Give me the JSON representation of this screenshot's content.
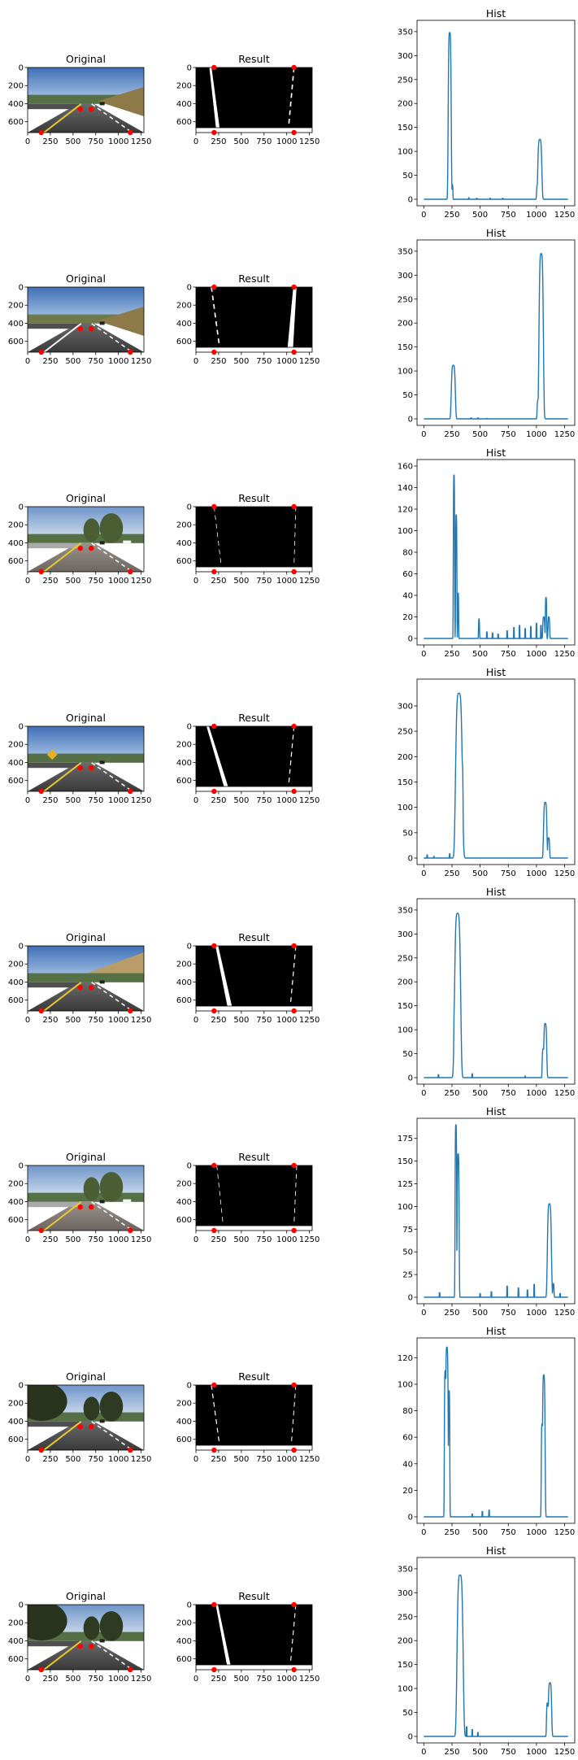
{
  "figure": {
    "rows": [
      {
        "original_title": "Original",
        "result_title": "Result",
        "hist_title": "Hist",
        "scene": "freeway-yellow",
        "hist": {
          "ylim": [
            0,
            360
          ],
          "yticks": [
            0,
            50,
            100,
            150,
            200,
            250,
            300,
            350
          ],
          "peaks": [
            {
              "c": 230,
              "w": 9,
              "h": 348
            },
            {
              "c": 214,
              "w": 3,
              "h": 30
            },
            {
              "c": 254,
              "w": 3,
              "h": 30
            },
            {
              "c": 1030,
              "w": 12,
              "h": 125
            },
            {
              "c": 1010,
              "w": 6,
              "h": 30
            }
          ],
          "noise": [
            {
              "x": 400,
              "h": 3
            },
            {
              "x": 470,
              "h": 2
            },
            {
              "x": 590,
              "h": 2
            },
            {
              "x": 700,
              "h": 2
            }
          ]
        },
        "result_lanes": [
          {
            "x0": 160,
            "x1": 240,
            "w": 40,
            "dash": false
          },
          {
            "x0": 1080,
            "x1": 1020,
            "w": 30,
            "dash": true
          }
        ]
      },
      {
        "original_title": "Original",
        "result_title": "Result",
        "hist_title": "Hist",
        "scene": "freeway-white",
        "hist": {
          "ylim": [
            0,
            360
          ],
          "yticks": [
            0,
            50,
            100,
            150,
            200,
            250,
            300,
            350
          ],
          "peaks": [
            {
              "c": 262,
              "w": 12,
              "h": 112
            },
            {
              "c": 1042,
              "w": 13,
              "h": 345
            },
            {
              "c": 1015,
              "w": 6,
              "h": 40
            }
          ],
          "noise": [
            {
              "x": 420,
              "h": 2
            },
            {
              "x": 480,
              "h": 2
            },
            {
              "x": 560,
              "h": 1
            }
          ]
        },
        "result_lanes": [
          {
            "x0": 170,
            "x1": 260,
            "w": 30,
            "dash": true
          },
          {
            "x0": 1090,
            "x1": 1040,
            "w": 60,
            "dash": false
          }
        ]
      },
      {
        "original_title": "Original",
        "result_title": "Result",
        "hist_title": "Hist",
        "scene": "trees-bright",
        "hist": {
          "ylim": [
            0,
            160
          ],
          "yticks": [
            0,
            20,
            40,
            60,
            80,
            100,
            120,
            140,
            160
          ],
          "peaks": [
            {
              "c": 268,
              "w": 4,
              "h": 152
            },
            {
              "c": 288,
              "w": 4,
              "h": 115
            },
            {
              "c": 305,
              "w": 3,
              "h": 42
            },
            {
              "c": 490,
              "w": 3,
              "h": 18
            },
            {
              "c": 1085,
              "w": 4,
              "h": 38
            },
            {
              "c": 1065,
              "w": 6,
              "h": 20
            },
            {
              "c": 1110,
              "w": 5,
              "h": 20
            }
          ],
          "noise": [
            {
              "x": 560,
              "h": 6
            },
            {
              "x": 610,
              "h": 5
            },
            {
              "x": 660,
              "h": 4
            },
            {
              "x": 740,
              "h": 7
            },
            {
              "x": 800,
              "h": 10
            },
            {
              "x": 850,
              "h": 12
            },
            {
              "x": 900,
              "h": 9
            },
            {
              "x": 950,
              "h": 11
            },
            {
              "x": 1000,
              "h": 14
            },
            {
              "x": 1040,
              "h": 12
            }
          ]
        },
        "result_lanes": [
          {
            "x0": 200,
            "x1": 280,
            "w": 14,
            "dash": true
          },
          {
            "x0": 1100,
            "x1": 1080,
            "w": 14,
            "dash": true
          }
        ]
      },
      {
        "original_title": "Original",
        "result_title": "Result",
        "hist_title": "Hist",
        "scene": "curve-sign",
        "hist": {
          "ylim": [
            0,
            340
          ],
          "yticks": [
            0,
            50,
            100,
            150,
            200,
            250,
            300
          ],
          "peaks": [
            {
              "c": 312,
              "w": 20,
              "h": 325
            },
            {
              "c": 340,
              "w": 6,
              "h": 190
            },
            {
              "c": 1078,
              "w": 10,
              "h": 110
            },
            {
              "c": 1108,
              "w": 6,
              "h": 40
            }
          ],
          "noise": [
            {
              "x": 30,
              "h": 6
            },
            {
              "x": 90,
              "h": 3
            },
            {
              "x": 230,
              "h": 8
            }
          ]
        },
        "result_lanes": [
          {
            "x0": 130,
            "x1": 330,
            "w": 45,
            "dash": false
          },
          {
            "x0": 1080,
            "x1": 1020,
            "w": 22,
            "dash": true
          }
        ]
      },
      {
        "original_title": "Original",
        "result_title": "Result",
        "hist_title": "Hist",
        "scene": "hill",
        "hist": {
          "ylim": [
            0,
            360
          ],
          "yticks": [
            0,
            50,
            100,
            150,
            200,
            250,
            300,
            350
          ],
          "peaks": [
            {
              "c": 300,
              "w": 18,
              "h": 343
            },
            {
              "c": 275,
              "w": 6,
              "h": 160
            },
            {
              "c": 1078,
              "w": 9,
              "h": 113
            },
            {
              "c": 1060,
              "w": 6,
              "h": 60
            }
          ],
          "noise": [
            {
              "x": 130,
              "h": 6
            },
            {
              "x": 430,
              "h": 8
            },
            {
              "x": 900,
              "h": 3
            }
          ]
        },
        "result_lanes": [
          {
            "x0": 230,
            "x1": 370,
            "w": 50,
            "dash": false
          },
          {
            "x0": 1100,
            "x1": 1040,
            "w": 22,
            "dash": true
          }
        ]
      },
      {
        "original_title": "Original",
        "result_title": "Result",
        "hist_title": "Hist",
        "scene": "trees-bright",
        "hist": {
          "ylim": [
            0,
            190
          ],
          "yticks": [
            0,
            25,
            50,
            75,
            100,
            125,
            150,
            175
          ],
          "peaks": [
            {
              "c": 285,
              "w": 5,
              "h": 190
            },
            {
              "c": 305,
              "w": 6,
              "h": 158
            },
            {
              "c": 1115,
              "w": 12,
              "h": 103
            },
            {
              "c": 1150,
              "w": 4,
              "h": 15
            }
          ],
          "noise": [
            {
              "x": 140,
              "h": 5
            },
            {
              "x": 500,
              "h": 4
            },
            {
              "x": 600,
              "h": 6
            },
            {
              "x": 740,
              "h": 12
            },
            {
              "x": 840,
              "h": 10
            },
            {
              "x": 920,
              "h": 8
            },
            {
              "x": 980,
              "h": 14
            },
            {
              "x": 1210,
              "h": 4
            }
          ]
        },
        "result_lanes": [
          {
            "x0": 230,
            "x1": 300,
            "w": 14,
            "dash": true
          },
          {
            "x0": 1110,
            "x1": 1080,
            "w": 16,
            "dash": true
          }
        ]
      },
      {
        "original_title": "Original",
        "result_title": "Result",
        "hist_title": "Hist",
        "scene": "trees-dark",
        "hist": {
          "ylim": [
            0,
            130
          ],
          "yticks": [
            0,
            20,
            40,
            60,
            80,
            100,
            120
          ],
          "peaks": [
            {
              "c": 205,
              "w": 8,
              "h": 128
            },
            {
              "c": 190,
              "w": 5,
              "h": 110
            },
            {
              "c": 225,
              "w": 4,
              "h": 95
            },
            {
              "c": 1065,
              "w": 8,
              "h": 107
            },
            {
              "c": 1050,
              "w": 5,
              "h": 70
            }
          ],
          "noise": [
            {
              "x": 520,
              "h": 4
            },
            {
              "x": 580,
              "h": 5
            },
            {
              "x": 430,
              "h": 2
            }
          ]
        },
        "result_lanes": [
          {
            "x0": 170,
            "x1": 260,
            "w": 22,
            "dash": true
          },
          {
            "x0": 1100,
            "x1": 1050,
            "w": 18,
            "dash": true
          }
        ]
      },
      {
        "original_title": "Original",
        "result_title": "Result",
        "hist_title": "Hist",
        "scene": "trees-dark",
        "hist": {
          "ylim": [
            0,
            360
          ],
          "yticks": [
            0,
            50,
            100,
            150,
            200,
            250,
            300,
            350
          ],
          "peaks": [
            {
              "c": 322,
              "w": 18,
              "h": 337
            },
            {
              "c": 300,
              "w": 6,
              "h": 185
            },
            {
              "c": 1120,
              "w": 10,
              "h": 112
            },
            {
              "c": 1098,
              "w": 6,
              "h": 70
            }
          ],
          "noise": [
            {
              "x": 380,
              "h": 20
            },
            {
              "x": 430,
              "h": 14
            },
            {
              "x": 480,
              "h": 8
            }
          ]
        },
        "result_lanes": [
          {
            "x0": 230,
            "x1": 360,
            "w": 40,
            "dash": false
          },
          {
            "x0": 1100,
            "x1": 1040,
            "w": 20,
            "dash": true
          }
        ]
      }
    ]
  },
  "chart_data": {
    "type": "line",
    "layout_grid": "8 rows x 3 columns (image, image, line chart)",
    "image_panels": {
      "x_ticks": [
        0,
        250,
        500,
        750,
        1000,
        1250
      ],
      "y_ticks": [
        0,
        200,
        400,
        600
      ],
      "xlim": [
        0,
        1280
      ],
      "ylim": [
        720,
        0
      ],
      "red_points": [
        [
          580,
          460
        ],
        [
          700,
          460
        ],
        [
          150,
          720
        ],
        [
          1130,
          720
        ]
      ],
      "result_red_points": [
        [
          200,
          0
        ],
        [
          1080,
          0
        ],
        [
          200,
          720
        ],
        [
          1080,
          720
        ]
      ]
    },
    "hist_panels": {
      "x_ticks": [
        0,
        250,
        500,
        750,
        1000,
        1250
      ],
      "xlim": [
        -60,
        1340
      ],
      "line_color": "#1f77b4"
    },
    "colors": {
      "red_marker": "#ff0000",
      "line": "#1f77b4"
    }
  }
}
